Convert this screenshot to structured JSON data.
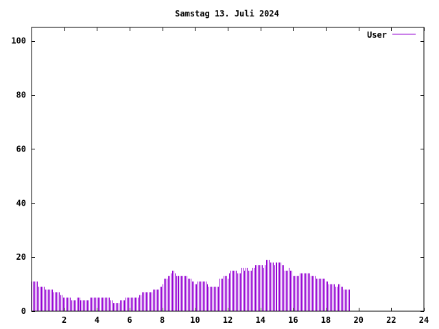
{
  "chart_data": {
    "type": "bar",
    "title": "Samstag 13. Juli 2024",
    "xlabel": "",
    "ylabel": "",
    "xlim": [
      0,
      24
    ],
    "ylim": [
      0,
      105
    ],
    "x_ticks": [
      2,
      4,
      6,
      8,
      10,
      12,
      14,
      16,
      18,
      20,
      22,
      24
    ],
    "y_ticks": [
      0,
      20,
      40,
      60,
      80,
      100
    ],
    "grid": false,
    "legend_position": "top-right",
    "series": [
      {
        "name": "User",
        "color": "#9400d3",
        "x_start": 0,
        "x_step": 0.0833333,
        "values": [
          11,
          11,
          11,
          11,
          11,
          9,
          9,
          9,
          9,
          9,
          8,
          8,
          8,
          8,
          8,
          8,
          7,
          7,
          7,
          7,
          7,
          6,
          6,
          5,
          5,
          5,
          5,
          5,
          5,
          4,
          4,
          4,
          4,
          5,
          5,
          5,
          4,
          4,
          4,
          4,
          4,
          4,
          4,
          5,
          5,
          5,
          5,
          5,
          5,
          5,
          5,
          5,
          5,
          5,
          5,
          5,
          5,
          5,
          4,
          4,
          3,
          3,
          3,
          3,
          3,
          4,
          4,
          4,
          4,
          5,
          5,
          5,
          5,
          5,
          5,
          5,
          5,
          5,
          5,
          6,
          6,
          7,
          7,
          7,
          7,
          7,
          7,
          7,
          7,
          8,
          8,
          8,
          8,
          8,
          9,
          9,
          10,
          12,
          12,
          12,
          13,
          13,
          14,
          15,
          15,
          14,
          13,
          13,
          13,
          13,
          13,
          13,
          13,
          13,
          13,
          12,
          12,
          12,
          11,
          11,
          10,
          10,
          11,
          11,
          11,
          11,
          11,
          11,
          11,
          10,
          9,
          9,
          9,
          9,
          9,
          9,
          9,
          9,
          12,
          12,
          12,
          13,
          13,
          13,
          12,
          14,
          15,
          15,
          15,
          15,
          15,
          14,
          14,
          14,
          16,
          16,
          15,
          16,
          16,
          15,
          15,
          15,
          16,
          16,
          17,
          17,
          17,
          17,
          17,
          17,
          16,
          17,
          19,
          19,
          19,
          18,
          18,
          18,
          17,
          18,
          18,
          18,
          18,
          18,
          17,
          17,
          15,
          15,
          15,
          16,
          15,
          15,
          13,
          13,
          13,
          13,
          13,
          14,
          14,
          14,
          14,
          14,
          14,
          14,
          14,
          13,
          13,
          13,
          13,
          12,
          12,
          12,
          12,
          12,
          12,
          12,
          11,
          11,
          10,
          10,
          10,
          10,
          10,
          9,
          9,
          10,
          10,
          9,
          9,
          8,
          8,
          8,
          8,
          8
        ]
      }
    ]
  }
}
